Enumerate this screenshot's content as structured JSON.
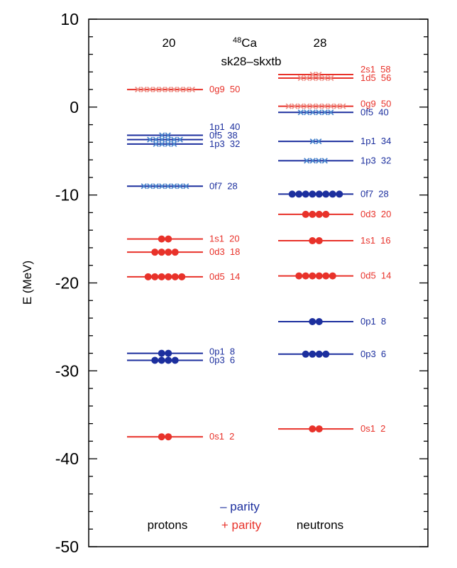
{
  "chart_data": {
    "type": "level-scheme",
    "nucleus_mass": "48",
    "nucleus_symbol": "Ca",
    "interaction": "sk28–skxtb",
    "ylabel": "E (MeV)",
    "ylim": [
      -50,
      10
    ],
    "yticks_major": [
      "10",
      "0",
      "-10",
      "-20",
      "-30",
      "-40",
      "-50"
    ],
    "columns": {
      "protons": {
        "label": "protons",
        "number": "20"
      },
      "neutrons": {
        "label": "neutrons",
        "number": "28"
      }
    },
    "legend": {
      "minus": "– parity",
      "plus": "+ parity"
    },
    "colors": {
      "minus": "#1c2f9e",
      "plus": "#e8322a",
      "minus_empty": "#4a84cc",
      "plus_empty": "#ee8f86"
    },
    "protons": [
      {
        "label": "0s1  2",
        "energy": -37.5,
        "parity": "+",
        "occ": 2
      },
      {
        "label": "0p3  6",
        "energy": -28.8,
        "parity": "-",
        "occ": 4
      },
      {
        "label": "0p1  8",
        "energy": -28.0,
        "parity": "-",
        "occ": 2
      },
      {
        "label": "0d5  14",
        "energy": -19.3,
        "parity": "+",
        "occ": 6
      },
      {
        "label": "0d3  18",
        "energy": -16.5,
        "parity": "+",
        "occ": 4
      },
      {
        "label": "1s1  20",
        "energy": -15.0,
        "parity": "+",
        "occ": 2
      },
      {
        "label": "0f7  28",
        "energy": -9.0,
        "parity": "-",
        "occ": 0,
        "empty": 8
      },
      {
        "label": "1p3  32",
        "energy": -4.2,
        "parity": "-",
        "occ": 0,
        "empty": 4
      },
      {
        "label": "0f5  38",
        "energy": -3.7,
        "parity": "-",
        "occ": 0,
        "empty": 6
      },
      {
        "label": "1p1  40",
        "energy": -3.2,
        "parity": "-",
        "occ": 0,
        "empty": 2
      },
      {
        "label": "0g9  50",
        "energy": 2.0,
        "parity": "+",
        "occ": 0,
        "empty": 10
      }
    ],
    "neutrons": [
      {
        "label": "0s1  2",
        "energy": -36.6,
        "parity": "+",
        "occ": 2
      },
      {
        "label": "0p3  6",
        "energy": -28.1,
        "parity": "-",
        "occ": 4
      },
      {
        "label": "0p1  8",
        "energy": -24.4,
        "parity": "-",
        "occ": 2
      },
      {
        "label": "0d5  14",
        "energy": -19.2,
        "parity": "+",
        "occ": 6
      },
      {
        "label": "1s1  16",
        "energy": -15.2,
        "parity": "+",
        "occ": 2
      },
      {
        "label": "0d3  20",
        "energy": -12.2,
        "parity": "+",
        "occ": 4
      },
      {
        "label": "0f7  28",
        "energy": -9.9,
        "parity": "-",
        "occ": 8
      },
      {
        "label": "1p3  32",
        "energy": -6.1,
        "parity": "-",
        "occ": 0,
        "empty": 4
      },
      {
        "label": "1p1  34",
        "energy": -3.9,
        "parity": "-",
        "occ": 0,
        "empty": 2
      },
      {
        "label": "0f5  40",
        "energy": -0.6,
        "parity": "-",
        "occ": 0,
        "empty": 6
      },
      {
        "label": "0g9  50",
        "energy": 0.1,
        "parity": "+",
        "occ": 0,
        "empty": 10
      },
      {
        "label": "1d5  56",
        "energy": 3.3,
        "parity": "+",
        "occ": 0,
        "empty": 6
      },
      {
        "label": "2s1  58",
        "energy": 3.7,
        "parity": "+",
        "occ": 0,
        "empty": 2
      }
    ]
  }
}
